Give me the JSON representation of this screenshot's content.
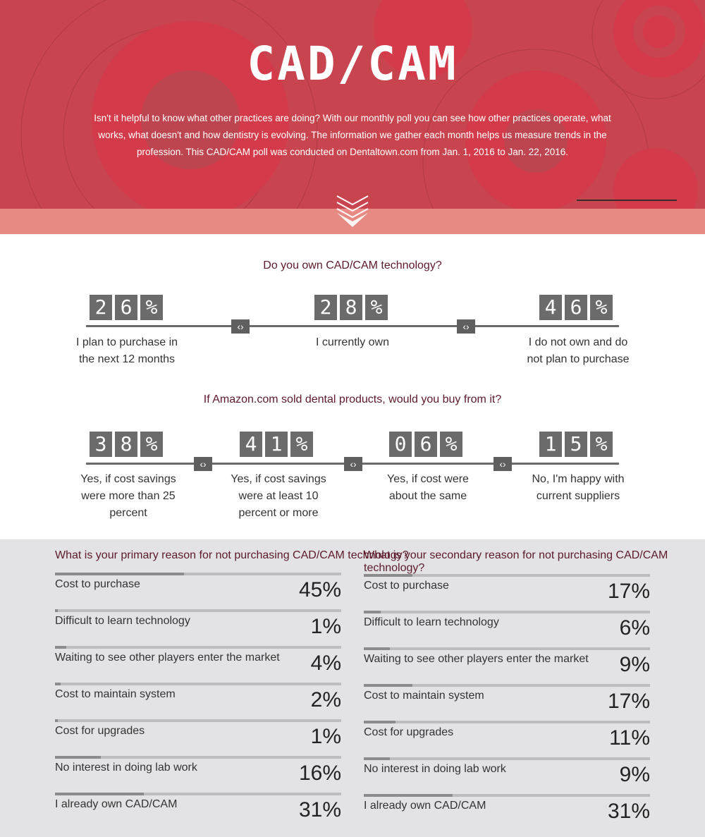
{
  "header": {
    "title": "CAD/CAM",
    "intro": "Isn't it helpful to know what other practices are doing? With our monthly poll you can see how other practices operate, what works, what doesn't and how dentistry is evolving. The information we gather each month helps us measure trends in the profession. This CAD/CAM poll was conducted on Dentaltown.com from Jan. 1, 2016 to Jan. 22, 2016.",
    "scroll_icon": "chevron-down-icon",
    "accent": "#c8444e"
  },
  "q1": {
    "title": "Do you own CAD/CAM technology?",
    "answers": [
      {
        "pct": [
          "2",
          "6",
          "%"
        ],
        "label": "I plan to purchase in the next 12 months"
      },
      {
        "pct": [
          "2",
          "8",
          "%"
        ],
        "label": "I currently own"
      },
      {
        "pct": [
          "4",
          "6",
          "%"
        ],
        "label": "I do not own and do not plan to purchase"
      }
    ],
    "separator": "‹›"
  },
  "q2": {
    "title": "If Amazon.com sold dental products, would you buy from it?",
    "answers": [
      {
        "pct": [
          "3",
          "8",
          "%"
        ],
        "label": "Yes, if cost savings were more than 25 percent"
      },
      {
        "pct": [
          "4",
          "1",
          "%"
        ],
        "label": "Yes, if cost savings were at least 10 percent or more"
      },
      {
        "pct": [
          "0",
          "6",
          "%"
        ],
        "label": "Yes, if cost were about the same"
      },
      {
        "pct": [
          "1",
          "5",
          "%"
        ],
        "label": "No, I'm happy with current suppliers"
      }
    ]
  },
  "chart_data": [
    {
      "type": "bar",
      "title": "What is your primary reason for not purchasing CAD/CAM technology?",
      "categories": [
        "Cost to purchase",
        "Difficult to learn technology",
        "Waiting to see other players enter the market",
        "Cost to maintain system",
        "Cost for upgrades",
        "No interest in doing lab work",
        "I already own CAD/CAM"
      ],
      "values": [
        45,
        1,
        4,
        2,
        1,
        16,
        31
      ],
      "labels": [
        "45%",
        "1%",
        "4%",
        "2%",
        "1%",
        "16%",
        "31%"
      ]
    },
    {
      "type": "bar",
      "title": "What is your secondary reason for not purchasing CAD/CAM technology?",
      "categories": [
        "Cost to purchase",
        "Difficult to learn technology",
        "Waiting to see other players enter the market",
        "Cost to maintain system",
        "Cost for upgrades",
        "No interest in doing lab work",
        "I already own CAD/CAM"
      ],
      "values": [
        17,
        6,
        9,
        17,
        11,
        9,
        31
      ],
      "labels": [
        "17%",
        "6%",
        "9%",
        "17%",
        "11%",
        "9%",
        "31%"
      ]
    }
  ]
}
